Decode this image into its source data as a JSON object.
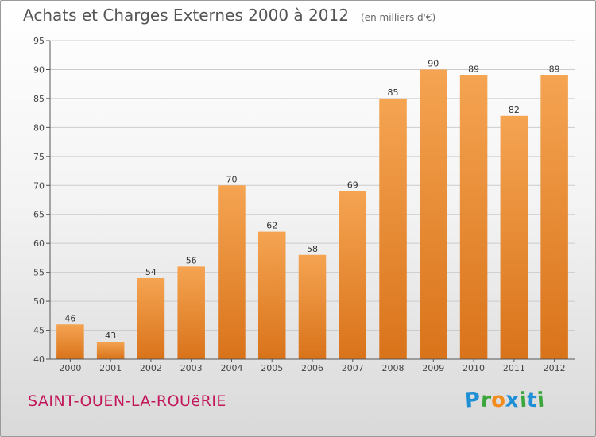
{
  "title": "Achats et Charges Externes 2000 à 2012",
  "unit_note": "(en milliers d'€)",
  "commune": "SAINT-OUEN-LA-ROUëRIE",
  "logo": {
    "letters": [
      "P",
      "r",
      "o",
      "x",
      "i",
      "t",
      "i"
    ],
    "colors": [
      "#1f8fd6",
      "#3aa63a",
      "#f28c1e",
      "#1f8fd6",
      "#3aa63a",
      "#1f8fd6",
      "#3aa63a"
    ]
  },
  "colors": {
    "bar_top": "#f5a452",
    "bar_bottom": "#d9731a",
    "grid": "#cccccc",
    "axis": "#555555"
  },
  "chart_data": {
    "type": "bar",
    "categories": [
      "2000",
      "2001",
      "2002",
      "2003",
      "2004",
      "2005",
      "2006",
      "2007",
      "2008",
      "2009",
      "2010",
      "2011",
      "2012"
    ],
    "values": [
      46,
      43,
      54,
      56,
      70,
      62,
      58,
      69,
      85,
      90,
      89,
      82,
      89
    ],
    "data_labels": [
      "46",
      "43",
      "54",
      "56",
      "70",
      "62",
      "58",
      "69",
      "85",
      "90",
      "89",
      "82",
      "89"
    ],
    "ylim": [
      40,
      95
    ],
    "yticks": [
      "40",
      "45",
      "50",
      "55",
      "60",
      "65",
      "70",
      "75",
      "80",
      "85",
      "90",
      "95"
    ],
    "grid": true,
    "title": "Achats et Charges Externes 2000 à 2012",
    "xlabel": "",
    "ylabel": ""
  }
}
